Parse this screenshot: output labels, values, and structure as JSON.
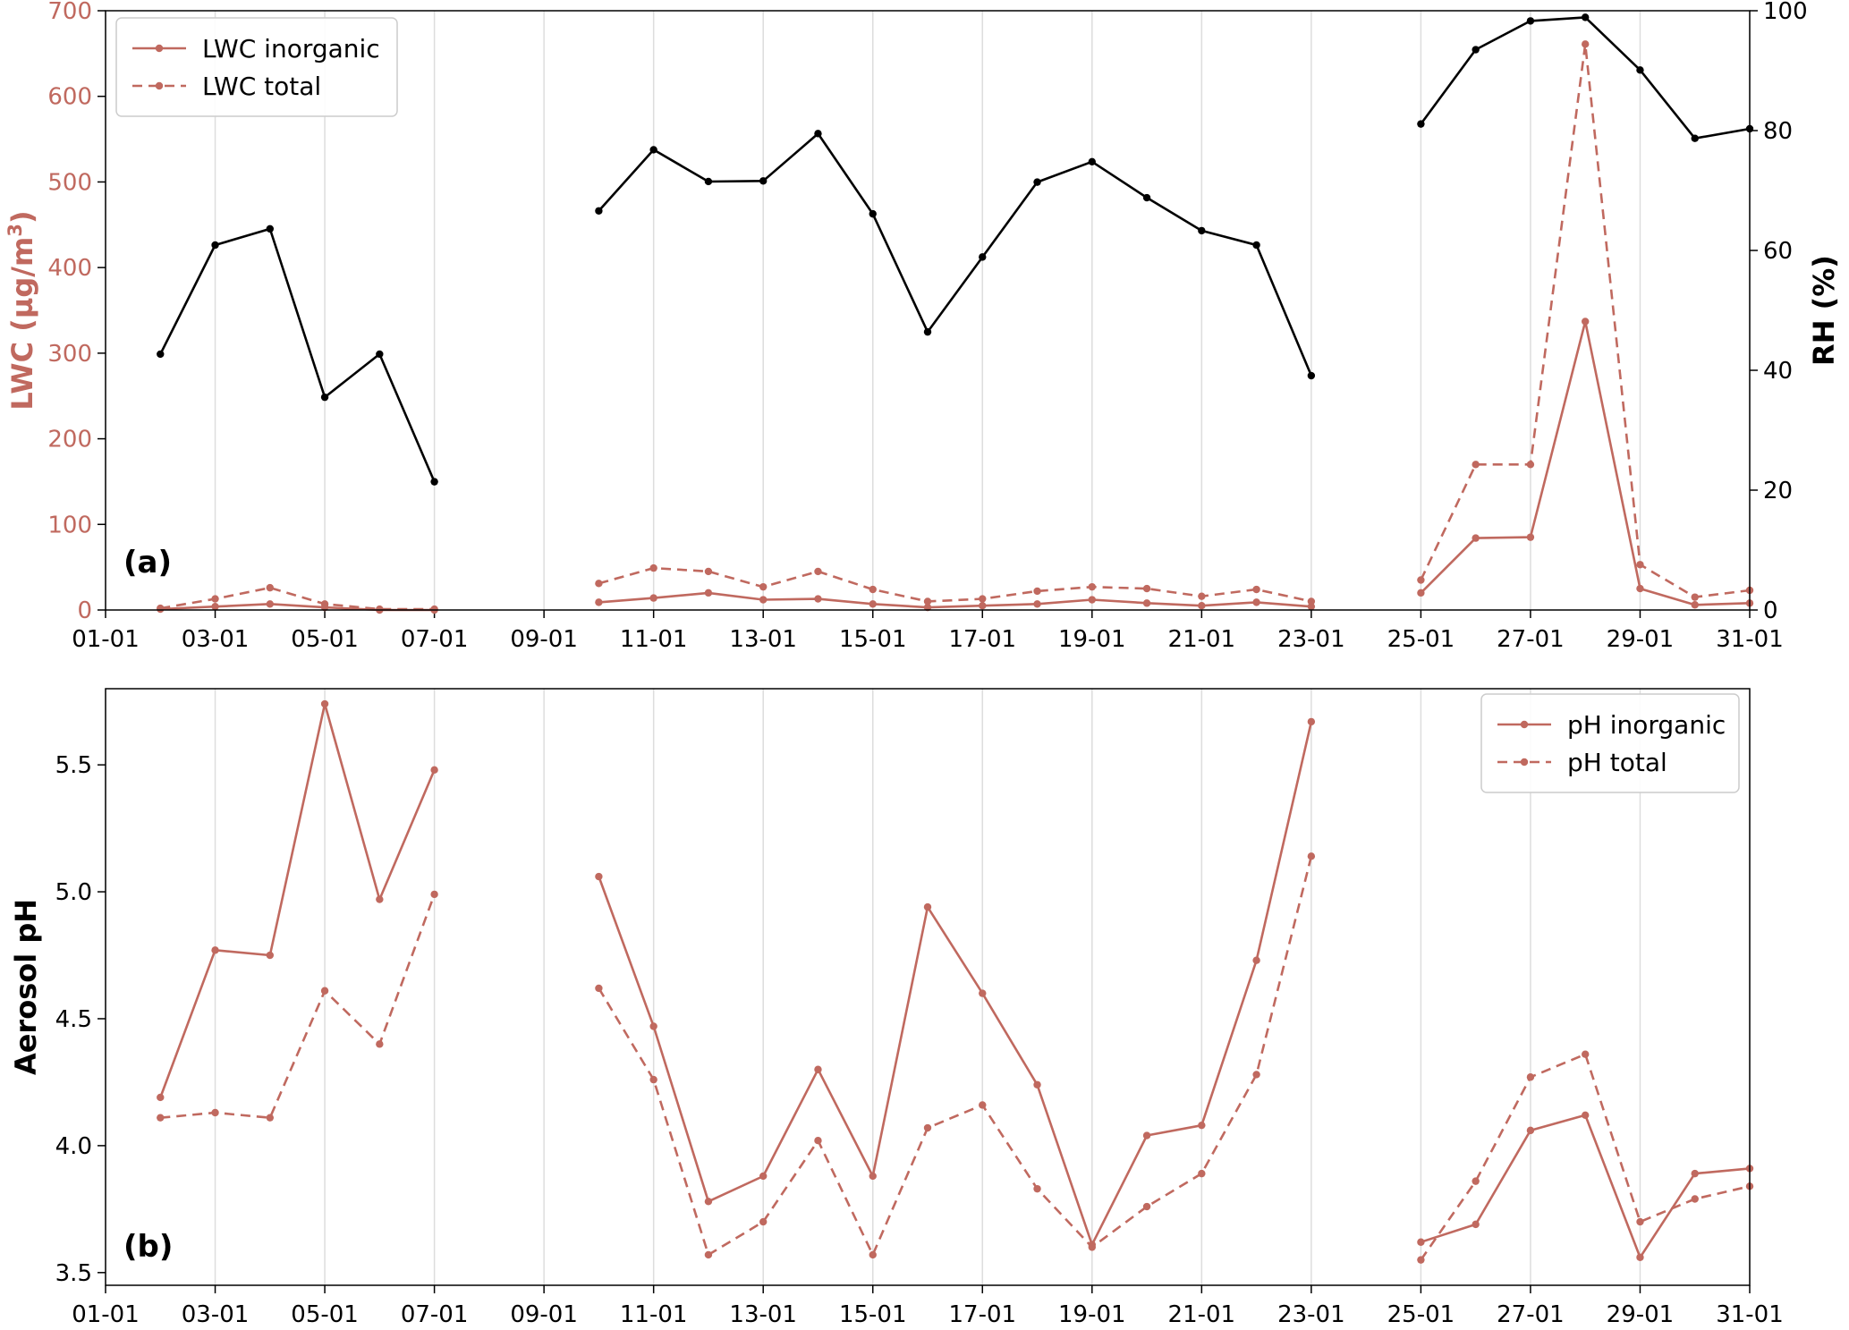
{
  "colors": {
    "lwc": "#c0695f",
    "rh": "#000000",
    "ph": "#c0695f",
    "grid": "#dddddd",
    "axis": "#000000",
    "legend_border": "#cccccc"
  },
  "chart_data": [
    {
      "type": "line",
      "panel_label": "(a)",
      "x_ticks": [
        "01-01",
        "03-01",
        "05-01",
        "07-01",
        "09-01",
        "11-01",
        "13-01",
        "15-01",
        "17-01",
        "19-01",
        "21-01",
        "23-01",
        "25-01",
        "27-01",
        "29-01",
        "31-01"
      ],
      "xlim": [
        1,
        31
      ],
      "x_grid": true,
      "left_axis": {
        "label": "LWC (µg/m",
        "label_superscript": "3",
        "label_close": ")",
        "ylim": [
          0,
          700
        ],
        "ticks": [
          "0",
          "100",
          "200",
          "300",
          "400",
          "500",
          "600",
          "700"
        ]
      },
      "right_axis": {
        "label": "RH (%)",
        "ylim": [
          0,
          100
        ],
        "ticks": [
          "0",
          "20",
          "40",
          "60",
          "80",
          "100"
        ]
      },
      "legend": {
        "position": "upper-left"
      },
      "series": [
        {
          "name": "LWC inorganic",
          "axis": "left",
          "style": "solid",
          "color": "#c0695f",
          "x": [
            2,
            3,
            4,
            5,
            6,
            7,
            null,
            10,
            11,
            12,
            13,
            14,
            15,
            16,
            17,
            18,
            19,
            20,
            21,
            22,
            23,
            null,
            25,
            26,
            27,
            28,
            29,
            30,
            31
          ],
          "y": [
            1,
            4,
            7,
            3,
            0,
            0,
            null,
            9,
            14,
            20,
            12,
            13,
            7,
            3,
            5,
            7,
            12,
            8,
            5,
            9,
            4,
            null,
            20,
            84,
            85,
            337,
            25,
            6,
            8
          ]
        },
        {
          "name": "LWC total",
          "axis": "left",
          "style": "dashed",
          "color": "#c0695f",
          "x": [
            2,
            3,
            4,
            5,
            6,
            7,
            null,
            10,
            11,
            12,
            13,
            14,
            15,
            16,
            17,
            18,
            19,
            20,
            21,
            22,
            23,
            null,
            25,
            26,
            27,
            28,
            29,
            30,
            31
          ],
          "y": [
            2,
            13,
            26,
            7,
            1,
            1,
            null,
            31,
            49,
            45,
            27,
            45,
            24,
            10,
            13,
            22,
            27,
            25,
            16,
            24,
            10,
            null,
            35,
            170,
            170,
            661,
            53,
            15,
            23
          ]
        },
        {
          "name": "",
          "axis": "right",
          "style": "solid",
          "color": "#000000",
          "x": [
            2,
            3,
            4,
            5,
            6,
            7,
            null,
            10,
            11,
            12,
            13,
            14,
            15,
            16,
            17,
            18,
            19,
            20,
            21,
            22,
            23,
            null,
            25,
            26,
            27,
            28,
            29,
            30,
            31
          ],
          "y": [
            42.7,
            60.9,
            63.6,
            35.5,
            42.7,
            21.4,
            null,
            66.6,
            76.8,
            71.5,
            71.6,
            79.5,
            66.1,
            46.4,
            58.9,
            71.4,
            74.8,
            68.8,
            63.3,
            60.9,
            39.1,
            null,
            81.1,
            93.5,
            98.3,
            98.9,
            90.1,
            78.7,
            80.3
          ]
        }
      ]
    },
    {
      "type": "line",
      "panel_label": "(b)",
      "x_ticks": [
        "01-01",
        "03-01",
        "05-01",
        "07-01",
        "09-01",
        "11-01",
        "13-01",
        "15-01",
        "17-01",
        "19-01",
        "21-01",
        "23-01",
        "25-01",
        "27-01",
        "29-01",
        "31-01"
      ],
      "xlim": [
        1,
        31
      ],
      "x_grid": true,
      "ylabel": "Aerosol pH",
      "ylim": [
        3.45,
        5.8
      ],
      "y_ticks": [
        "3.5",
        "4.0",
        "4.5",
        "5.0",
        "5.5"
      ],
      "legend": {
        "position": "upper-right"
      },
      "series": [
        {
          "name": "pH inorganic",
          "style": "solid",
          "color": "#c0695f",
          "x": [
            2,
            3,
            4,
            5,
            6,
            7,
            null,
            10,
            11,
            12,
            13,
            14,
            15,
            16,
            17,
            18,
            19,
            20,
            21,
            22,
            23,
            null,
            25,
            26,
            27,
            28,
            29,
            30,
            31
          ],
          "y": [
            4.19,
            4.77,
            4.75,
            5.74,
            4.97,
            5.48,
            null,
            5.06,
            4.47,
            3.78,
            3.88,
            4.3,
            3.88,
            4.94,
            4.6,
            4.24,
            3.61,
            4.04,
            4.08,
            4.73,
            5.67,
            null,
            3.62,
            3.69,
            4.06,
            4.12,
            3.56,
            3.89,
            3.91
          ]
        },
        {
          "name": "pH total",
          "style": "dashed",
          "color": "#c0695f",
          "x": [
            2,
            3,
            4,
            5,
            6,
            7,
            null,
            10,
            11,
            12,
            13,
            14,
            15,
            16,
            17,
            18,
            19,
            20,
            21,
            22,
            23,
            null,
            25,
            26,
            27,
            28,
            29,
            30,
            31
          ],
          "y": [
            4.11,
            4.13,
            4.11,
            4.61,
            4.4,
            4.99,
            null,
            4.62,
            4.26,
            3.57,
            3.7,
            4.02,
            3.57,
            4.07,
            4.16,
            3.83,
            3.6,
            3.76,
            3.89,
            4.28,
            5.14,
            null,
            3.55,
            3.86,
            4.27,
            4.36,
            3.7,
            3.79,
            3.84
          ]
        }
      ]
    }
  ]
}
